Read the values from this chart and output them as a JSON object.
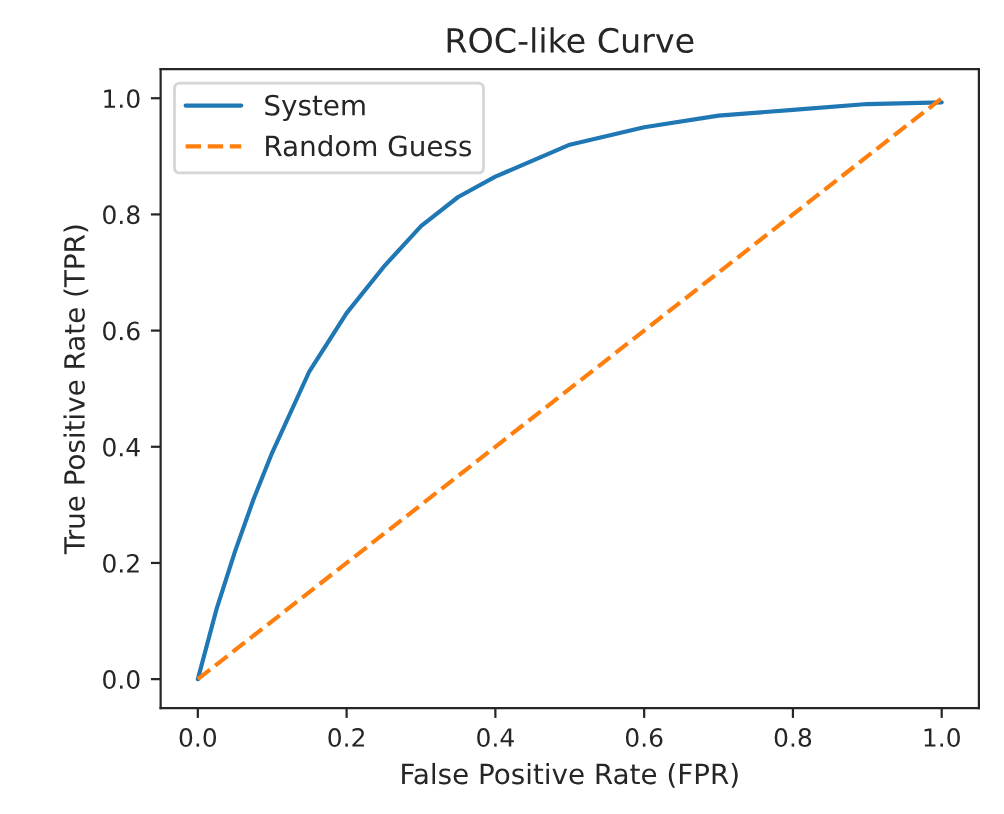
{
  "chart_data": {
    "type": "line",
    "title": "ROC-like Curve",
    "xlabel": "False Positive Rate (FPR)",
    "ylabel": "True Positive Rate (TPR)",
    "xlim": [
      -0.05,
      1.05
    ],
    "ylim": [
      -0.05,
      1.05
    ],
    "xticks": [
      {
        "value": 0,
        "label": "0.0"
      },
      0.2,
      0.4,
      0.6,
      0.8,
      {
        "value": 1,
        "label": "1.0"
      }
    ],
    "yticks": [
      {
        "value": 0,
        "label": "0.0"
      },
      0.2,
      0.4,
      0.6,
      0.8,
      {
        "value": 1,
        "label": "1.0"
      }
    ],
    "legend": "top left",
    "grid": false,
    "series": [
      {
        "name": "System",
        "color": "#1f77b4",
        "line_style": "solid",
        "x": [
          0,
          0.025,
          0.05,
          0.075,
          0.1,
          0.15,
          0.2,
          0.25,
          0.3,
          0.35,
          0.4,
          0.5,
          0.6,
          0.7,
          0.8,
          0.9,
          1.0
        ],
        "values": [
          0,
          0.12,
          0.22,
          0.31,
          0.39,
          0.53,
          0.63,
          0.71,
          0.78,
          0.83,
          0.865,
          0.92,
          0.95,
          0.97,
          0.98,
          0.99,
          0.993
        ]
      },
      {
        "name": "Random Guess",
        "color": "#ff7f0e",
        "line_style": "dashed",
        "x": [
          0,
          1
        ],
        "values": [
          0,
          1
        ]
      }
    ]
  }
}
